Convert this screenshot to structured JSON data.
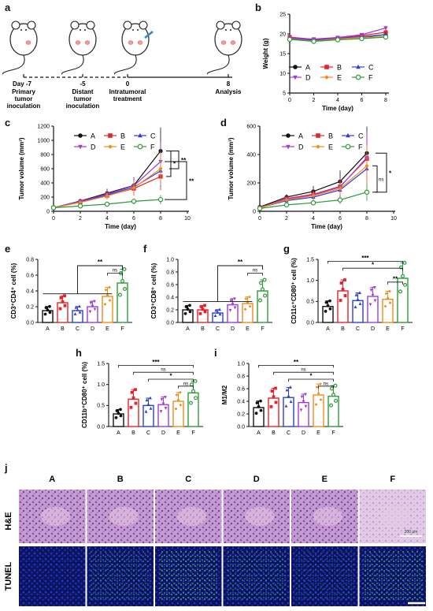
{
  "letters": [
    "a",
    "b",
    "c",
    "d",
    "e",
    "f",
    "g",
    "h",
    "i",
    "j"
  ],
  "panel_a": {
    "timeline": [
      {
        "day": "Day -7",
        "label": [
          "Primary",
          "tumor",
          "inoculation"
        ]
      },
      {
        "day": "-5",
        "label": [
          "Distant",
          "tumor",
          "inoculation"
        ]
      },
      {
        "day": "0",
        "label": [
          "Intratumoral",
          "treatment"
        ]
      },
      {
        "day": "8",
        "label": [
          "Analysis"
        ]
      }
    ]
  },
  "groups": [
    "A",
    "B",
    "C",
    "D",
    "E",
    "F"
  ],
  "colors": {
    "A": "#111111",
    "B": "#e8222b",
    "C": "#2b3fd8",
    "D": "#a23bd6",
    "E": "#f08c1a",
    "F": "#2e9a3a"
  },
  "panel_b": {
    "chart_data": {
      "type": "line",
      "x": [
        0,
        2,
        4,
        6,
        8
      ],
      "xlabel": "Time (day)",
      "ylabel": "Weight (g)",
      "xticks": [
        0,
        2,
        4,
        6,
        8
      ],
      "yticks": [
        5,
        10,
        15,
        20,
        25
      ],
      "ylim": [
        5,
        25
      ],
      "series": [
        {
          "name": "A",
          "values": [
            18.8,
            18.3,
            18.8,
            19.2,
            19.8
          ]
        },
        {
          "name": "B",
          "values": [
            19.2,
            18.6,
            18.9,
            19.6,
            20.4
          ]
        },
        {
          "name": "C",
          "values": [
            18.9,
            18.4,
            18.8,
            19.3,
            19.8
          ]
        },
        {
          "name": "D",
          "values": [
            19.0,
            18.7,
            19.1,
            19.8,
            21.5
          ]
        },
        {
          "name": "E",
          "values": [
            18.7,
            18.2,
            18.7,
            19.1,
            19.3
          ]
        },
        {
          "name": "F",
          "values": [
            18.6,
            18.1,
            18.5,
            18.8,
            19.2
          ]
        }
      ]
    }
  },
  "panel_c": {
    "chart_data": {
      "type": "line",
      "x": [
        0,
        2,
        4,
        6,
        8
      ],
      "xlabel": "Time (day)",
      "ylabel": "Tumor volume (mm³)",
      "xticks": [
        0,
        2,
        4,
        6,
        8,
        10
      ],
      "yticks": [
        0,
        200,
        400,
        600,
        800,
        1000,
        1200
      ],
      "ylim": [
        0,
        1200
      ],
      "xlim": [
        0,
        10
      ],
      "series": [
        {
          "name": "A",
          "values": [
            50,
            145,
            255,
            365,
            850
          ]
        },
        {
          "name": "B",
          "values": [
            50,
            130,
            220,
            320,
            490
          ]
        },
        {
          "name": "C",
          "values": [
            50,
            135,
            230,
            340,
            570
          ]
        },
        {
          "name": "D",
          "values": [
            50,
            140,
            240,
            360,
            700
          ]
        },
        {
          "name": "E",
          "values": [
            50,
            125,
            215,
            330,
            600
          ]
        },
        {
          "name": "F",
          "values": [
            50,
            75,
            100,
            140,
            165
          ]
        }
      ],
      "significance": [
        "*",
        "**",
        "**"
      ]
    }
  },
  "panel_d": {
    "chart_data": {
      "type": "line",
      "x": [
        0,
        2,
        4,
        6,
        8
      ],
      "xlabel": "Time (day)",
      "ylabel": "Tumor volume (mm³)",
      "xticks": [
        0,
        2,
        4,
        6,
        8,
        10
      ],
      "yticks": [
        0,
        200,
        400,
        600
      ],
      "ylim": [
        0,
        600
      ],
      "xlim": [
        0,
        10
      ],
      "series": [
        {
          "name": "A",
          "values": [
            30,
            100,
            140,
            210,
            410
          ]
        },
        {
          "name": "B",
          "values": [
            25,
            90,
            120,
            175,
            370
          ]
        },
        {
          "name": "C",
          "values": [
            25,
            75,
            100,
            150,
            300
          ]
        },
        {
          "name": "D",
          "values": [
            25,
            85,
            115,
            170,
            380
          ]
        },
        {
          "name": "E",
          "values": [
            25,
            80,
            110,
            160,
            320
          ]
        },
        {
          "name": "F",
          "values": [
            20,
            45,
            60,
            80,
            135
          ]
        }
      ],
      "significance": [
        "ns",
        "*"
      ]
    }
  },
  "bars": [
    {
      "letter": "e",
      "ylabel": "CD3⁺CD4⁺ cell (%)",
      "yticks": [
        "0.0",
        "0.2",
        "0.4",
        "0.6",
        "0.8"
      ],
      "ymax": 0.8,
      "values": [
        0.15,
        0.25,
        0.15,
        0.2,
        0.33,
        0.5
      ],
      "sig": [
        {
          "label": "**",
          "type": "big"
        },
        {
          "label": "ns",
          "type": "ns"
        }
      ]
    },
    {
      "letter": "f",
      "ylabel": "CD3⁺CD8⁺ cell (%)",
      "yticks": [
        "0.0",
        "0.2",
        "0.4",
        "0.6",
        "0.8",
        "1.0"
      ],
      "ymax": 1.0,
      "values": [
        0.2,
        0.2,
        0.15,
        0.28,
        0.3,
        0.5
      ],
      "sig": [
        {
          "label": "**",
          "type": "big"
        },
        {
          "label": "ns",
          "type": "ns"
        }
      ]
    },
    {
      "letter": "g",
      "ylabel": "CD11c⁺CD80⁺ cell (%)",
      "yticks": [
        "0.0",
        "0.5",
        "1.0",
        "1.5"
      ],
      "ymax": 1.5,
      "values": [
        0.38,
        0.75,
        0.52,
        0.62,
        0.55,
        1.05
      ],
      "sig": [
        {
          "label": "***",
          "type": "top"
        },
        {
          "label": "*",
          "type": "mid"
        },
        {
          "label": "**",
          "type": "low"
        }
      ]
    },
    {
      "letter": "h",
      "ylabel": "CD11b⁺CD80⁺ cell (%)",
      "yticks": [
        "0.0",
        "0.5",
        "1.0",
        "1.5"
      ],
      "ymax": 1.5,
      "values": [
        0.3,
        0.65,
        0.5,
        0.52,
        0.6,
        0.8
      ],
      "sig": [
        {
          "label": "***",
          "type": "top"
        },
        {
          "label": "ns",
          "type": "mid"
        },
        {
          "label": "*",
          "type": "mid2"
        },
        {
          "label": "ns",
          "type": "low"
        }
      ]
    },
    {
      "letter": "i",
      "ylabel": "M1/M2",
      "yticks": [
        "0.0",
        "0.2",
        "0.4",
        "0.6",
        "0.8",
        "1.0"
      ],
      "ymax": 1.0,
      "values": [
        0.3,
        0.45,
        0.46,
        0.38,
        0.5,
        0.48
      ],
      "sig": [
        {
          "label": "**",
          "type": "top"
        },
        {
          "label": "ns",
          "type": "mid"
        },
        {
          "label": "*",
          "type": "mid2"
        },
        {
          "label": "ns",
          "type": "low"
        }
      ]
    }
  ],
  "panel_j": {
    "columns": [
      "A",
      "B",
      "C",
      "D",
      "E",
      "F"
    ],
    "rows": [
      "H&E",
      "TUNEL"
    ],
    "scale_label": "200 μm"
  }
}
